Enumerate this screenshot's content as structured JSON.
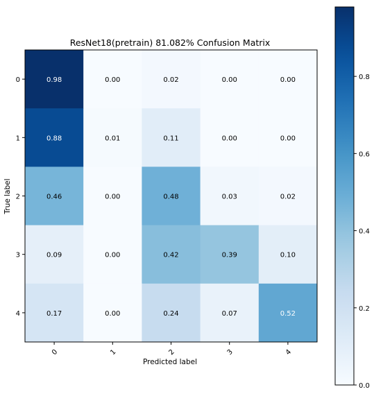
{
  "chart_data": {
    "type": "heatmap",
    "title": "ResNet18(pretrain) 81.082% Confusion Matrix",
    "xlabel": "Predicted label",
    "ylabel": "True label",
    "x_categories": [
      "0",
      "1",
      "2",
      "3",
      "4"
    ],
    "y_categories": [
      "0",
      "1",
      "2",
      "3",
      "4"
    ],
    "values": [
      [
        0.98,
        0.0,
        0.02,
        0.0,
        0.0
      ],
      [
        0.88,
        0.01,
        0.11,
        0.0,
        0.0
      ],
      [
        0.46,
        0.0,
        0.48,
        0.03,
        0.02
      ],
      [
        0.09,
        0.0,
        0.42,
        0.39,
        0.1
      ],
      [
        0.17,
        0.0,
        0.24,
        0.07,
        0.52
      ]
    ],
    "value_labels": [
      [
        "0.98",
        "0.00",
        "0.02",
        "0.00",
        "0.00"
      ],
      [
        "0.88",
        "0.01",
        "0.11",
        "0.00",
        "0.00"
      ],
      [
        "0.46",
        "0.00",
        "0.48",
        "0.03",
        "0.02"
      ],
      [
        "0.09",
        "0.00",
        "0.42",
        "0.39",
        "0.10"
      ],
      [
        "0.17",
        "0.00",
        "0.24",
        "0.07",
        "0.52"
      ]
    ],
    "colormap": "Blues",
    "colorbar": {
      "range": [
        0.0,
        0.98
      ],
      "ticks": [
        0.0,
        0.2,
        0.4,
        0.6,
        0.8
      ],
      "tick_labels": [
        "0.0",
        "0.2",
        "0.4",
        "0.6",
        "0.8"
      ]
    },
    "grid": false
  }
}
